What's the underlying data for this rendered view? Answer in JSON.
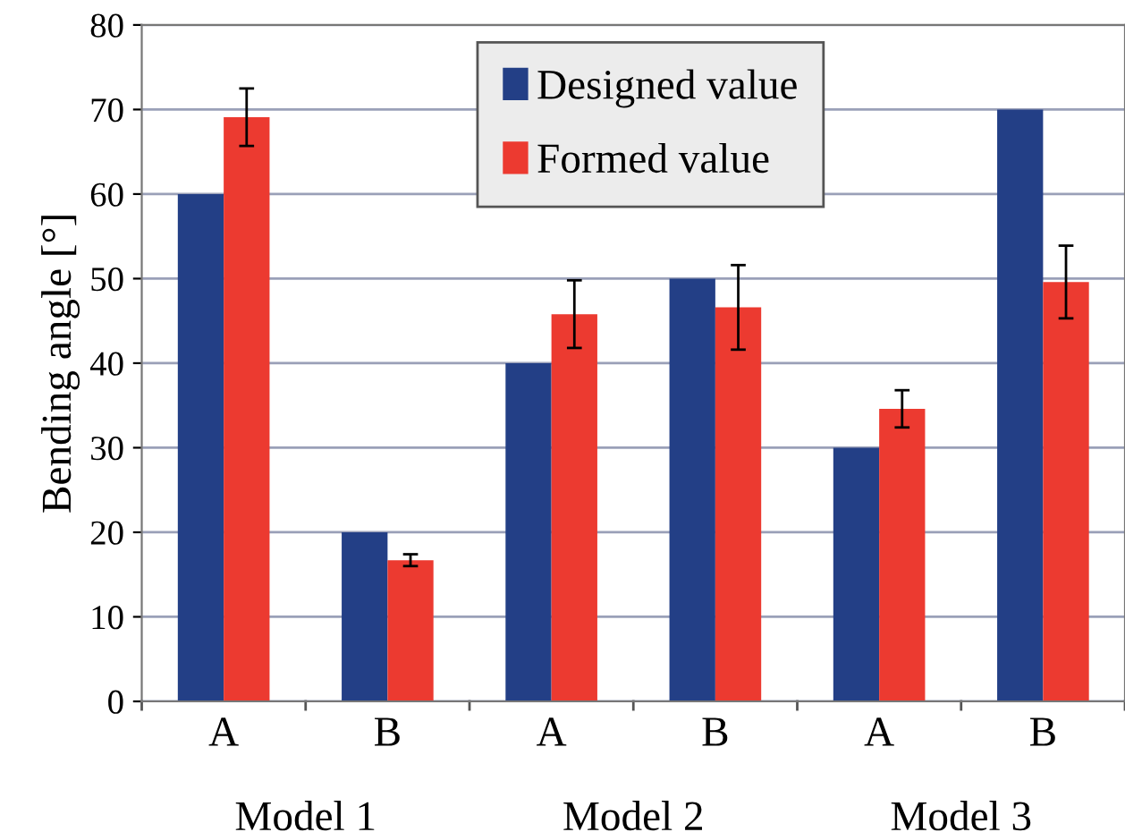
{
  "chart_data": {
    "type": "bar",
    "ylabel": "Bending angle [°]",
    "categories": [
      "A",
      "B",
      "A",
      "B",
      "A",
      "B"
    ],
    "series": [
      {
        "name": "Designed value",
        "color": "#233f86",
        "values": [
          60,
          20,
          40,
          50,
          30,
          70
        ]
      },
      {
        "name": "Formed value",
        "color": "#ec3a30",
        "values": [
          69.1,
          16.7,
          45.8,
          46.6,
          34.6,
          49.6
        ],
        "errors": [
          3.4,
          0.7,
          4.0,
          5.0,
          2.2,
          4.3
        ]
      }
    ],
    "annotations": [
      "Model 1",
      "Model 2",
      "Model 3"
    ],
    "ylim": [
      0,
      80
    ],
    "yticks": [
      0,
      10,
      20,
      30,
      40,
      50,
      60,
      70,
      80
    ],
    "grid": "y",
    "legend": "top"
  }
}
